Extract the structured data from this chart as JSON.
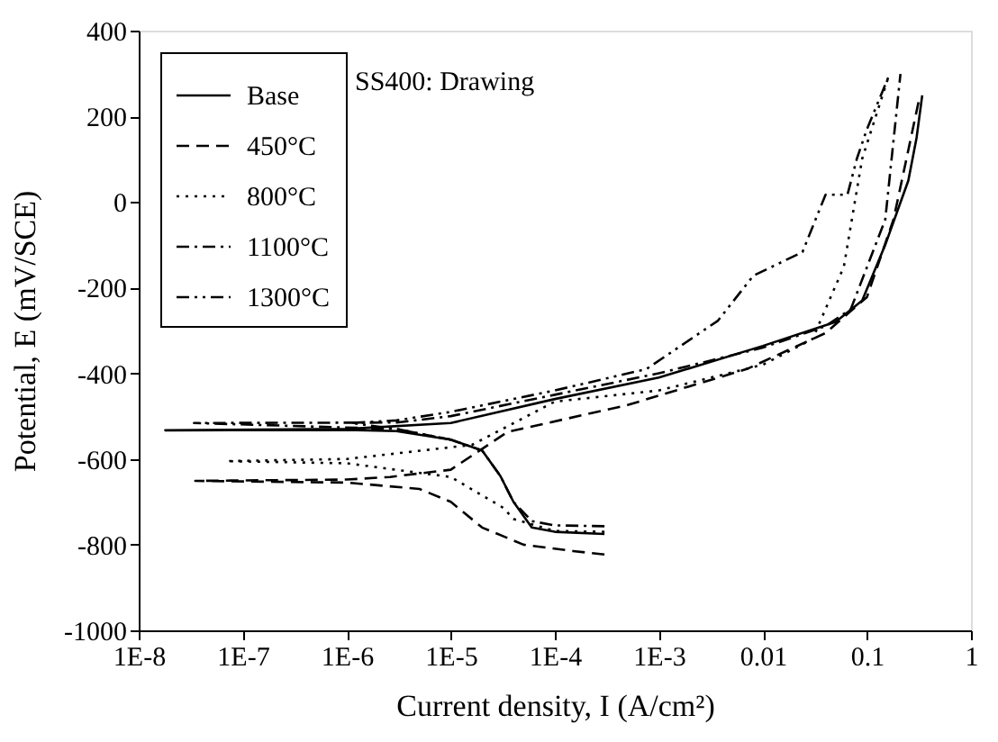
{
  "chart_data": {
    "type": "line",
    "xlabel": "Current density, I  (A/cm²)",
    "ylabel": "Potential, E  (mV/SCE)",
    "annotations": [
      "SS400: Drawing"
    ],
    "log": "x",
    "xlim": [
      1e-08,
      1
    ],
    "ylim": [
      -1000,
      400
    ],
    "xticks": [
      {
        "value": 1e-08,
        "label": "1E-8"
      },
      {
        "value": 1e-07,
        "label": "1E-7"
      },
      {
        "value": 1e-06,
        "label": "1E-6"
      },
      {
        "value": 1e-05,
        "label": "1E-5"
      },
      {
        "value": 0.0001,
        "label": "1E-4"
      },
      {
        "value": 0.001,
        "label": "1E-3"
      },
      {
        "value": 0.01,
        "label": "0.01"
      },
      {
        "value": 0.1,
        "label": "0.1"
      },
      {
        "value": 1,
        "label": "1"
      }
    ],
    "yticks": [
      -1000,
      -800,
      -600,
      -400,
      -200,
      0,
      200,
      400
    ],
    "grid": false,
    "legend": "top left",
    "marker": "none",
    "series": [
      {
        "name": "Base",
        "color": "#000000",
        "line_style": "solid",
        "x": [
          0.0003,
          0.0001,
          6e-05,
          4e-05,
          3e-05,
          2e-05,
          1e-05,
          3e-06,
          1e-06,
          1.8e-08,
          1e-06,
          1e-05,
          0.0001,
          0.001,
          0.01,
          0.05,
          0.09,
          0.15,
          0.25,
          0.3,
          0.34
        ],
        "values": [
          -775,
          -770,
          -760,
          -700,
          -640,
          -580,
          -555,
          -535,
          -532,
          -533,
          -530,
          -516,
          -460,
          -410,
          -336,
          -280,
          -230,
          -100,
          50,
          150,
          249
        ]
      },
      {
        "name": "450°C",
        "color": "#000000",
        "line_style": "dashed",
        "x": [
          0.0003,
          0.00015,
          5e-05,
          2e-05,
          1e-05,
          5e-06,
          1e-06,
          3.5e-08,
          1e-06,
          2.6e-06,
          1e-05,
          3.5e-05,
          0.0005,
          0.007,
          0.04,
          0.1,
          0.18,
          0.24,
          0.32
        ],
        "values": [
          -823,
          -815,
          -800,
          -760,
          -700,
          -670,
          -655,
          -651,
          -648,
          -642,
          -625,
          -537,
          -474,
          -390,
          -306,
          -222,
          -41,
          101,
          244
        ]
      },
      {
        "name": "800°C",
        "color": "#000000",
        "line_style": "dotted",
        "x": [
          0.0003,
          0.0001,
          4e-05,
          3.2e-05,
          1e-05,
          1e-06,
          7e-08,
          1e-06,
          1.6e-05,
          0.0001,
          0.001,
          0.01,
          0.03,
          0.06,
          0.09,
          0.16
        ],
        "values": [
          -770,
          -768,
          -740,
          -714,
          -642,
          -610,
          -605,
          -600,
          -567,
          -466,
          -440,
          -380,
          -320,
          -151,
          101,
          290
        ]
      },
      {
        "name": "1100°C",
        "color": "#000000",
        "line_style": "dashdot",
        "x": [
          0.0003,
          0.0001,
          6e-05,
          4e-05,
          3e-05,
          2e-05,
          1e-05,
          3e-06,
          3.4e-08,
          3e-06,
          1e-05,
          0.0001,
          0.001,
          0.01,
          0.04,
          0.07,
          0.15,
          0.21
        ],
        "values": [
          -757,
          -755,
          -745,
          -700,
          -640,
          -580,
          -555,
          -530,
          -516,
          -515,
          -500,
          -450,
          -400,
          -340,
          -290,
          -250,
          -41,
          299
        ]
      },
      {
        "name": "1300°C",
        "color": "#000000",
        "line_style": "dashdotdot",
        "x": [
          1e-05,
          3e-06,
          1.1e-06,
          3e-06,
          1e-05,
          0.0001,
          0.00076,
          0.0037,
          0.0081,
          0.024,
          0.04,
          0.065,
          0.08,
          0.1,
          0.16
        ],
        "values": [
          -555,
          -530,
          -516,
          -510,
          -490,
          -440,
          -390,
          -277,
          -172,
          -117,
          17,
          17,
          101,
          170,
          290
        ]
      }
    ]
  }
}
